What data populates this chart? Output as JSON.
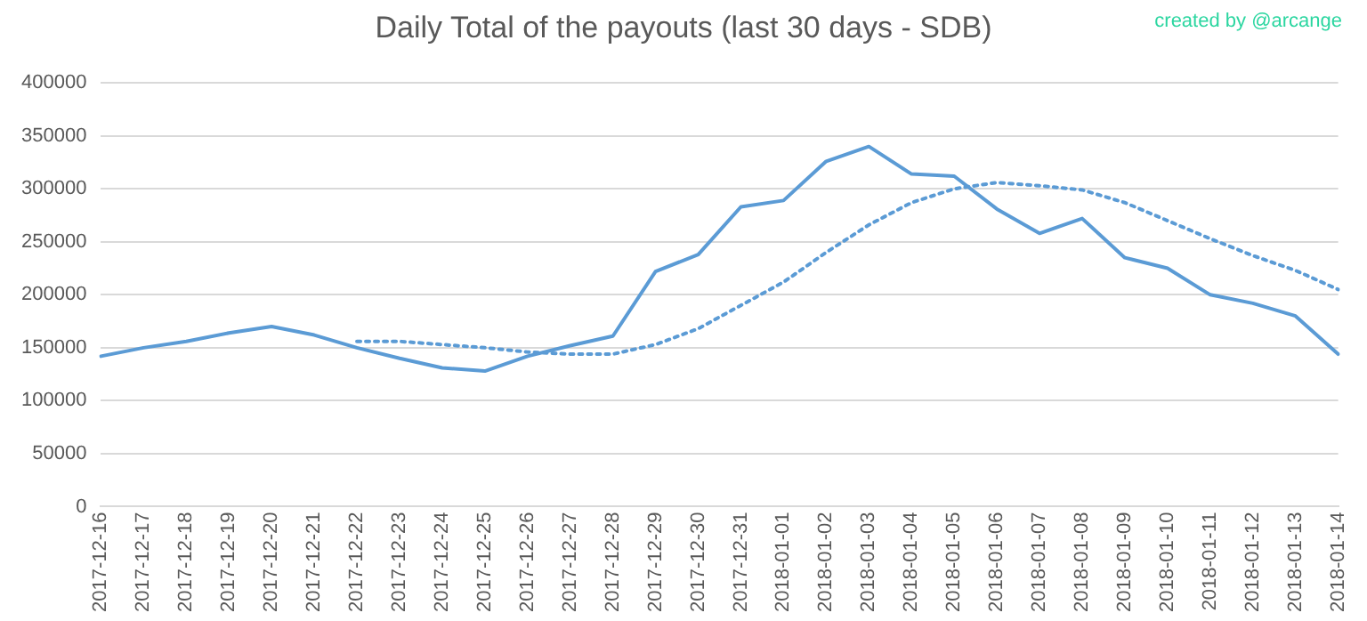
{
  "chart_data": {
    "type": "line",
    "title": "Daily Total of the payouts (last 30 days - SDB)",
    "annotations": [
      "created by @arcange"
    ],
    "categories": [
      "2017-12-16",
      "2017-12-17",
      "2017-12-18",
      "2017-12-19",
      "2017-12-20",
      "2017-12-21",
      "2017-12-22",
      "2017-12-23",
      "2017-12-24",
      "2017-12-25",
      "2017-12-26",
      "2017-12-27",
      "2017-12-28",
      "2017-12-29",
      "2017-12-30",
      "2017-12-31",
      "2018-01-01",
      "2018-01-02",
      "2018-01-03",
      "2018-01-04",
      "2018-01-05",
      "2018-01-06",
      "2018-01-07",
      "2018-01-08",
      "2018-01-09",
      "2018-01-10",
      "2018-01-11",
      "2018-01-12",
      "2018-01-13",
      "2018-01-14"
    ],
    "series": [
      {
        "color": "#5b9bd5",
        "line_style": "solid",
        "values": [
          142000,
          150000,
          156000,
          164000,
          170000,
          162000,
          150000,
          140000,
          131000,
          128000,
          142000,
          152000,
          161000,
          222000,
          238000,
          283000,
          289000,
          326000,
          340000,
          314000,
          312000,
          281000,
          258000,
          272000,
          235000,
          225000,
          200000,
          192000,
          180000,
          144000
        ]
      },
      {
        "color": "#5b9bd5",
        "line_style": "dotted",
        "values": [
          null,
          null,
          null,
          null,
          null,
          null,
          156000,
          156000,
          153000,
          150000,
          146000,
          144000,
          144000,
          153000,
          168000,
          190000,
          212000,
          240000,
          266000,
          287000,
          300000,
          306000,
          303000,
          299000,
          287000,
          270000,
          253000,
          237000,
          223000,
          205000
        ]
      }
    ],
    "ylim": [
      0,
      400000
    ],
    "yticks": [
      0,
      50000,
      100000,
      150000,
      200000,
      250000,
      300000,
      350000,
      400000
    ],
    "grid": "y",
    "legend": false,
    "marker": "none"
  }
}
